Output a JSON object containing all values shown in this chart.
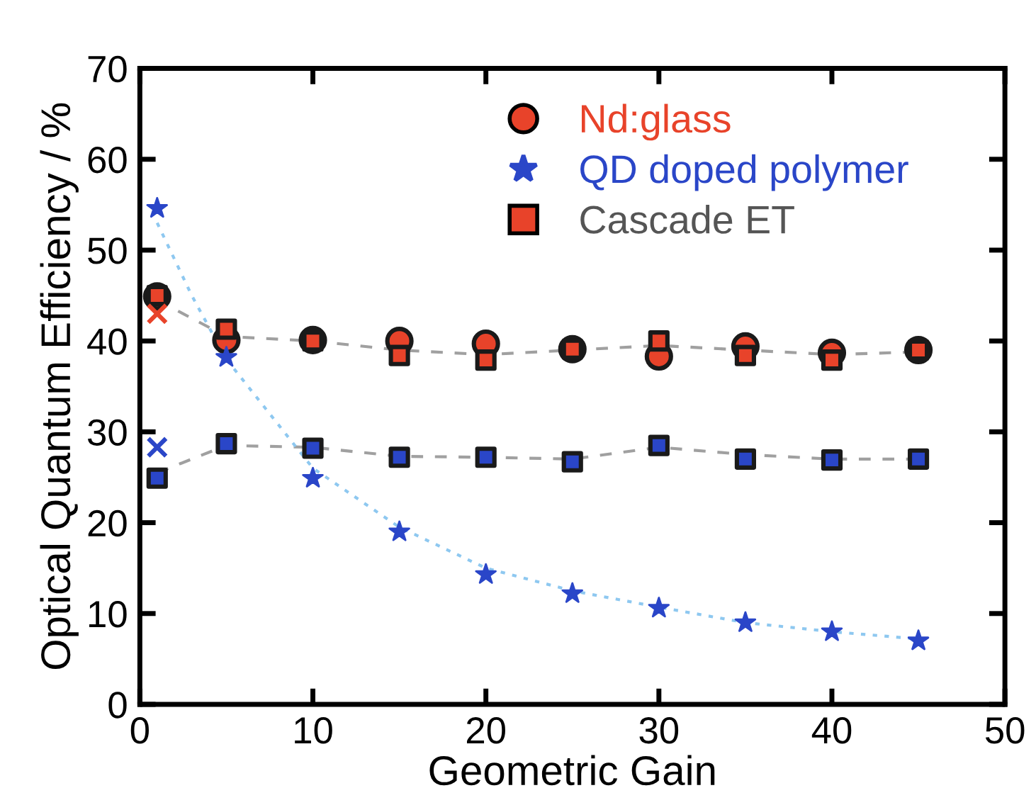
{
  "chart_data": {
    "type": "scatter",
    "xlabel": "Geometric Gain",
    "ylabel": "Optical Quantum Efficiency / %",
    "xlim": [
      0,
      50
    ],
    "ylim": [
      0,
      70
    ],
    "xticks": [
      0,
      10,
      20,
      30,
      40,
      50
    ],
    "yticks": [
      0,
      10,
      20,
      30,
      40,
      50,
      60,
      70
    ],
    "grid": false,
    "legend": "top right",
    "series": [
      {
        "type": "line",
        "line_style": "dashed",
        "color": "#a0a0a0",
        "marker": "none",
        "x": [
          1,
          5,
          10,
          15,
          20,
          25,
          30,
          35,
          40,
          45
        ],
        "values": [
          44.5,
          40.5,
          40,
          39,
          38.5,
          39,
          39.5,
          39,
          38.5,
          38.8
        ]
      },
      {
        "type": "line",
        "line_style": "dashed",
        "color": "#a0a0a0",
        "marker": "none",
        "x": [
          1,
          5,
          10,
          15,
          20,
          25,
          30,
          35,
          40,
          45
        ],
        "values": [
          25.5,
          28.5,
          28.3,
          27.3,
          27.2,
          27,
          28.3,
          27.5,
          27,
          27
        ]
      },
      {
        "type": "line",
        "line_style": "dotted",
        "color": "#8ec8f0",
        "marker": "none",
        "x": [
          1,
          3,
          5,
          10,
          15,
          20,
          25,
          30,
          35,
          40,
          45
        ],
        "values": [
          53,
          45,
          38,
          26,
          19.5,
          15,
          12.5,
          10.7,
          9,
          8,
          7.2
        ]
      },
      {
        "name": "Nd:glass",
        "color": "#e8432a",
        "marker": "circle",
        "x": [
          1,
          5,
          10,
          15,
          20,
          25,
          30,
          35,
          40,
          45
        ],
        "values": [
          44.9,
          40.1,
          40.1,
          40,
          39.7,
          39.1,
          38.3,
          39.4,
          38.7,
          39
        ]
      },
      {
        "name": "QD doped polymer",
        "color": "#2a46c8",
        "marker": "star",
        "x": [
          1,
          5,
          10,
          15,
          20,
          25,
          30,
          35,
          40,
          45
        ],
        "values": [
          54.6,
          38.2,
          24.9,
          19,
          14.3,
          12.2,
          10.6,
          9,
          8,
          7
        ]
      },
      {
        "name": "Cascade ET",
        "color": "#555555",
        "marker": "square",
        "x": [
          1,
          5,
          10,
          15,
          20,
          25,
          30,
          35,
          40,
          45,
          1,
          5,
          10,
          15,
          20,
          25,
          30,
          35,
          40,
          45
        ],
        "values": [
          45,
          41.3,
          40,
          38.4,
          37.9,
          39.1,
          40,
          38.4,
          37.9,
          39,
          24.9,
          28.7,
          28.2,
          27.2,
          27.2,
          26.7,
          28.5,
          27,
          26.9,
          27
        ],
        "colors": [
          "#e8432a",
          "#e8432a",
          "#e8432a",
          "#e8432a",
          "#e8432a",
          "#e8432a",
          "#e8432a",
          "#e8432a",
          "#e8432a",
          "#e8432a",
          "#2a46c8",
          "#2a46c8",
          "#2a46c8",
          "#2a46c8",
          "#2a46c8",
          "#2a46c8",
          "#2a46c8",
          "#2a46c8",
          "#2a46c8",
          "#2a46c8"
        ]
      },
      {
        "color": "#e8432a",
        "marker": "cross",
        "x": [
          1
        ],
        "values": [
          43
        ]
      },
      {
        "color": "#2a46c8",
        "marker": "cross",
        "x": [
          1
        ],
        "values": [
          28.3
        ]
      }
    ]
  }
}
